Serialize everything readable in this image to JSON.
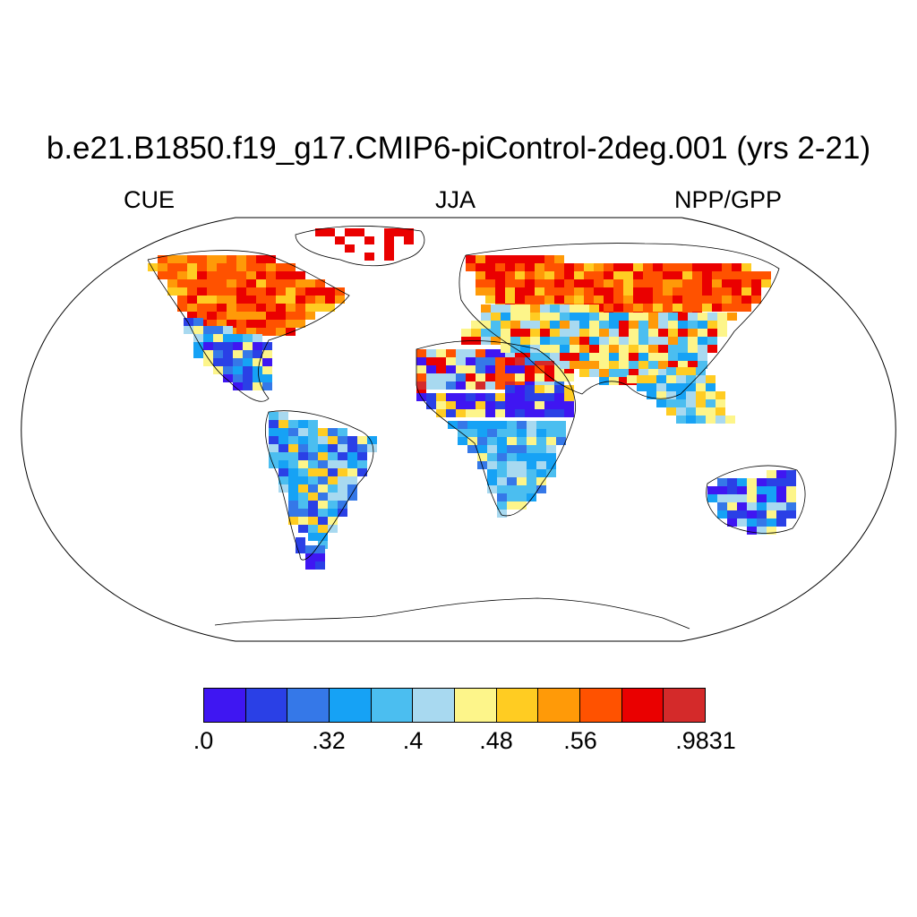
{
  "title": "b.e21.B1850.f19_g17.CMIP6-piControl-2deg.001 (yrs 2-21)",
  "left_label": "CUE",
  "center_label": "JJA",
  "right_label": "NPP/GPP",
  "colorbar": {
    "colors": [
      "#3f16f2",
      "#2a40e6",
      "#3578e8",
      "#16a2f5",
      "#4bbef0",
      "#a8d9f0",
      "#fdf58a",
      "#ffcc22",
      "#ff9a08",
      "#ff5200",
      "#ea0000",
      "#d42a2a"
    ],
    "labels": [
      ".0",
      ".32",
      ".4",
      ".48",
      ".56",
      ".9831"
    ]
  }
}
